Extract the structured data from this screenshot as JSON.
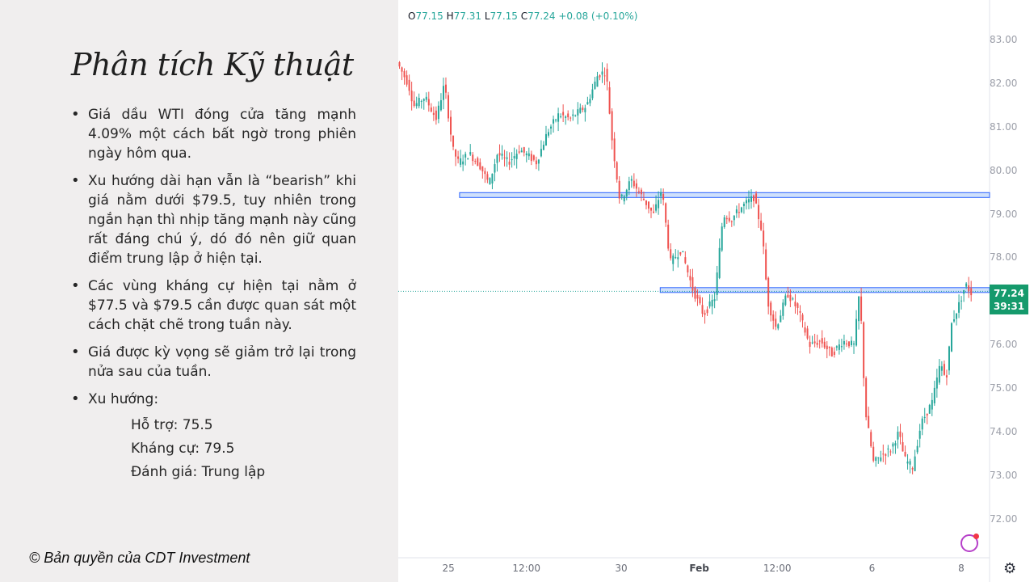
{
  "slide": {
    "title": "Phân tích Kỹ thuật",
    "bullets": [
      "Giá dầu WTI đóng cửa tăng mạnh 4.09% một cách bất ngờ trong phiên ngày hôm qua.",
      "Xu hướng dài hạn vẫn là “bearish” khi giá nằm dưới $79.5, tuy nhiên trong ngắn hạn thì nhịp tăng mạnh này cũng rất đáng chú ý, dó đó nên giữ quan điểm trung lập ở hiện tại.",
      "Các vùng kháng cự hiện tại nằm ở $77.5 và $79.5 cần được quan sát một cách chặt chẽ trong tuần này.",
      "Giá được kỳ vọng sẽ giảm trở lại trong nửa sau của tuần."
    ],
    "trend_label": "Xu hướng:",
    "trend_items": [
      "Hỗ trợ: 75.5",
      "Kháng cự: 79.5",
      "Đánh giá: Trung lập"
    ],
    "copyright": "© Bản quyền của CDT Investment"
  },
  "chart_data": {
    "type": "candlestick",
    "ohlc_header": {
      "o_label": "O",
      "o": "77.15",
      "h_label": "H",
      "h": "77.31",
      "l_label": "L",
      "l": "77.15",
      "c_label": "C",
      "c": "77.24",
      "change": "+0.08 (+0.10%)"
    },
    "ylim": [
      71.6,
      83.4
    ],
    "y_ticks": [
      "83.00",
      "82.00",
      "81.00",
      "80.00",
      "79.00",
      "78.00",
      "77.00",
      "76.00",
      "75.00",
      "74.00",
      "73.00",
      "72.00"
    ],
    "x_ticks": [
      {
        "label": "25",
        "pos": 0.09,
        "bold": false
      },
      {
        "label": "12:00",
        "pos": 0.23,
        "bold": false
      },
      {
        "label": "30",
        "pos": 0.4,
        "bold": false
      },
      {
        "label": "Feb",
        "pos": 0.54,
        "bold": true
      },
      {
        "label": "12:00",
        "pos": 0.68,
        "bold": false
      },
      {
        "label": "6",
        "pos": 0.85,
        "bold": false
      },
      {
        "label": "8",
        "pos": 1.01,
        "bold": false
      }
    ],
    "resistance_zones": [
      {
        "price": 79.45,
        "start": 0.11
      },
      {
        "price": 77.27,
        "start": 0.47
      }
    ],
    "last_price": "77.24",
    "countdown": "39:31",
    "path": [
      [
        0.0,
        82.5
      ],
      [
        0.02,
        82.0
      ],
      [
        0.03,
        81.5
      ],
      [
        0.05,
        81.7
      ],
      [
        0.07,
        81.2
      ],
      [
        0.085,
        82.0
      ],
      [
        0.1,
        80.5
      ],
      [
        0.11,
        80.2
      ],
      [
        0.13,
        80.4
      ],
      [
        0.15,
        80.1
      ],
      [
        0.165,
        79.7
      ],
      [
        0.18,
        80.4
      ],
      [
        0.2,
        80.2
      ],
      [
        0.22,
        80.5
      ],
      [
        0.25,
        80.2
      ],
      [
        0.27,
        80.9
      ],
      [
        0.29,
        81.3
      ],
      [
        0.31,
        81.2
      ],
      [
        0.34,
        81.5
      ],
      [
        0.36,
        82.2
      ],
      [
        0.375,
        82.3
      ],
      [
        0.385,
        80.8
      ],
      [
        0.4,
        79.3
      ],
      [
        0.42,
        79.8
      ],
      [
        0.44,
        79.4
      ],
      [
        0.46,
        79.0
      ],
      [
        0.475,
        79.6
      ],
      [
        0.49,
        77.9
      ],
      [
        0.51,
        78.2
      ],
      [
        0.53,
        77.3
      ],
      [
        0.55,
        76.7
      ],
      [
        0.57,
        77.1
      ],
      [
        0.585,
        79.0
      ],
      [
        0.6,
        78.9
      ],
      [
        0.62,
        79.2
      ],
      [
        0.64,
        79.4
      ],
      [
        0.655,
        78.6
      ],
      [
        0.665,
        77.0
      ],
      [
        0.68,
        76.4
      ],
      [
        0.7,
        77.2
      ],
      [
        0.72,
        76.8
      ],
      [
        0.74,
        76.0
      ],
      [
        0.76,
        76.1
      ],
      [
        0.78,
        75.8
      ],
      [
        0.8,
        76.1
      ],
      [
        0.82,
        76.0
      ],
      [
        0.83,
        77.3
      ],
      [
        0.84,
        74.5
      ],
      [
        0.855,
        73.3
      ],
      [
        0.87,
        73.5
      ],
      [
        0.885,
        73.6
      ],
      [
        0.9,
        74.0
      ],
      [
        0.91,
        73.4
      ],
      [
        0.925,
        73.2
      ],
      [
        0.94,
        74.2
      ],
      [
        0.96,
        74.7
      ],
      [
        0.975,
        75.6
      ],
      [
        0.985,
        75.2
      ],
      [
        0.995,
        76.5
      ],
      [
        1.01,
        77.0
      ],
      [
        1.02,
        77.4
      ],
      [
        1.03,
        77.2
      ]
    ]
  }
}
